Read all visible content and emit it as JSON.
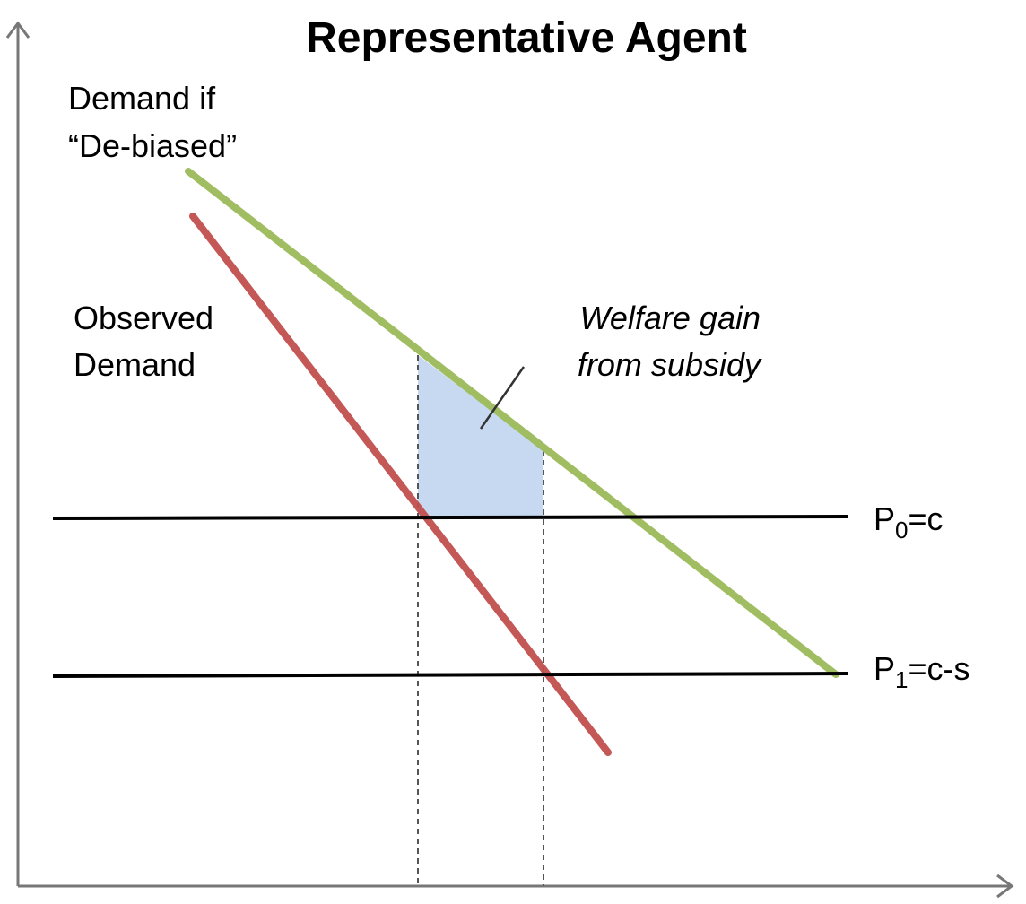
{
  "title": "Representative Agent",
  "labels": {
    "debiased_line1": "Demand if",
    "debiased_line2": "“De-biased”",
    "observed_line1": "Observed",
    "observed_line2": "Demand",
    "welfare_line1": "Welfare gain",
    "welfare_line2": "from subsidy",
    "p0_letter": "P",
    "p0_sub": "0",
    "p0_rest": "=c",
    "p1_letter": "P",
    "p1_sub": "1",
    "p1_rest": "=c-s"
  },
  "colors": {
    "axis": "#777777",
    "debiased_demand": "#9bbb59",
    "observed_demand": "#c0504d",
    "welfare_area": "#c6d9f1",
    "price_line": "#000000",
    "guide_line": "#555555"
  }
}
